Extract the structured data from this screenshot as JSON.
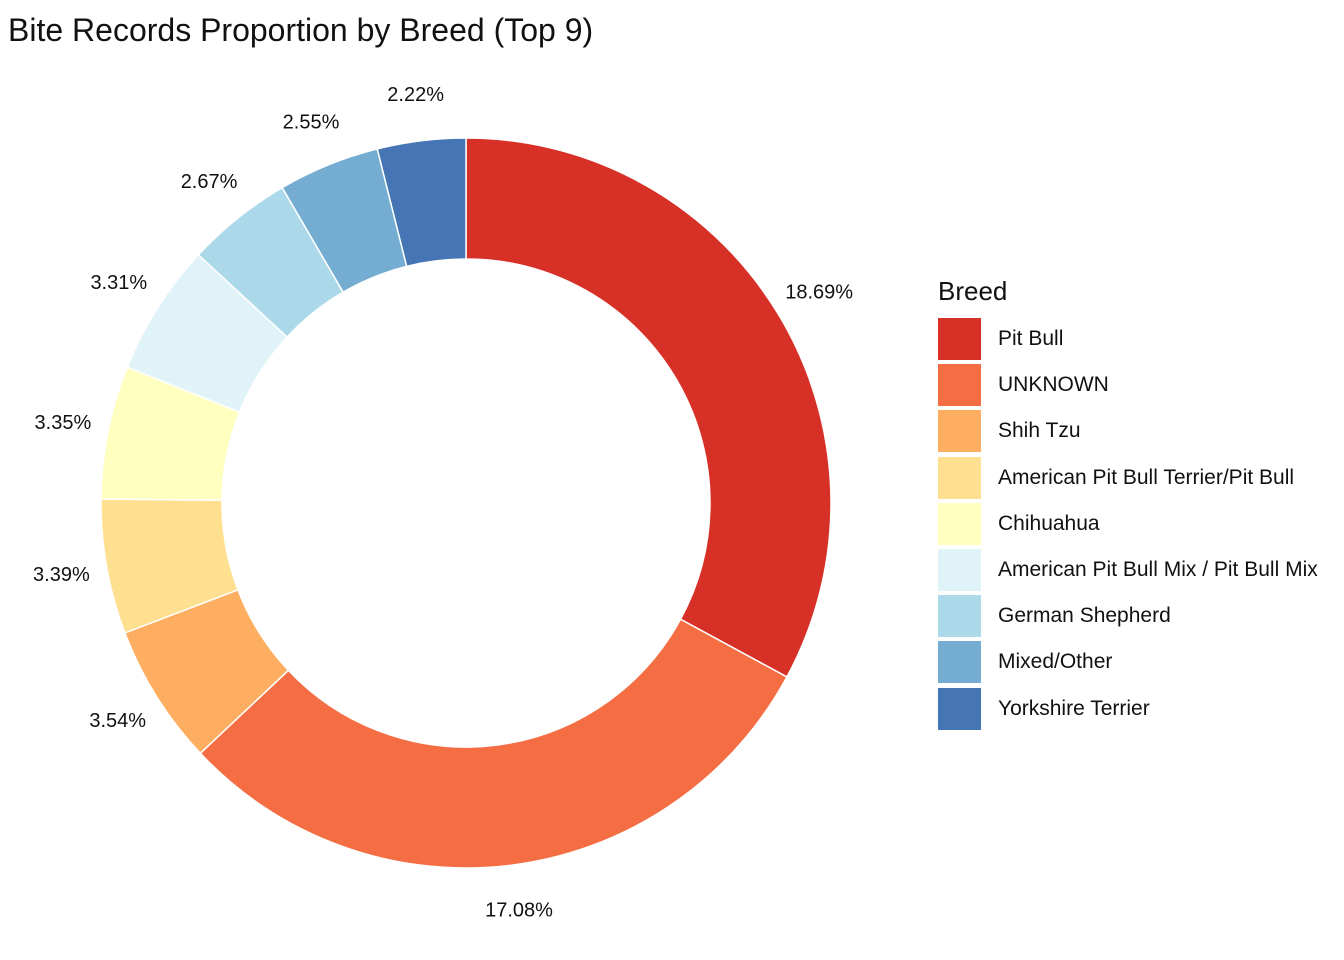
{
  "chart_data": {
    "type": "pie",
    "variant": "donut",
    "title": "Bite Records Proportion by Breed (Top 9)",
    "legend_title": "Breed",
    "legend_position": "right",
    "slices": [
      {
        "label": "Pit Bull",
        "value": 18.69,
        "display": "18.69%",
        "color": "#D73027"
      },
      {
        "label": "UNKNOWN",
        "value": 17.08,
        "display": "17.08%",
        "color": "#F46D43"
      },
      {
        "label": "Shih Tzu",
        "value": 3.54,
        "display": "3.54%",
        "color": "#FDAE61"
      },
      {
        "label": "American Pit Bull Terrier/Pit Bull",
        "value": 3.39,
        "display": "3.39%",
        "color": "#FEE090"
      },
      {
        "label": "Chihuahua",
        "value": 3.35,
        "display": "3.35%",
        "color": "#FFFFBF"
      },
      {
        "label": "American Pit Bull Mix / Pit Bull Mix",
        "value": 3.31,
        "display": "3.31%",
        "color": "#E0F3F8"
      },
      {
        "label": "German Shepherd",
        "value": 2.67,
        "display": "2.67%",
        "color": "#ABD9E9"
      },
      {
        "label": "Mixed/Other",
        "value": 2.55,
        "display": "2.55%",
        "color": "#74ADD1"
      },
      {
        "label": "Yorkshire Terrier",
        "value": 2.22,
        "display": "2.22%",
        "color": "#4575B4"
      }
    ]
  }
}
